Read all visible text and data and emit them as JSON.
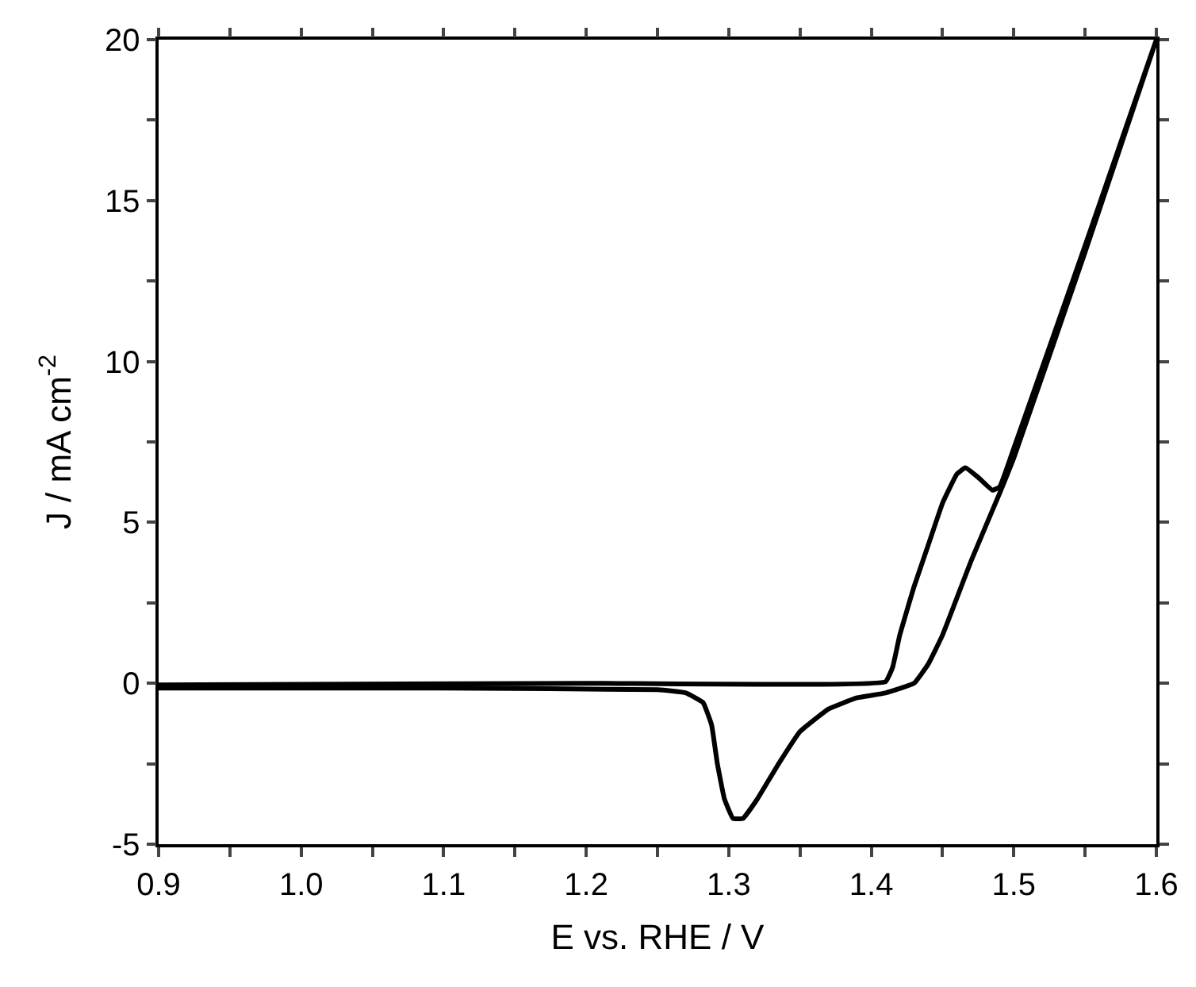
{
  "chart_data": {
    "type": "line",
    "xlabel": "E vs. RHE / V",
    "ylabel": "J / mA cm$^{-2}$",
    "xlim": [
      0.9,
      1.6
    ],
    "ylim": [
      -5,
      20
    ],
    "xticks": [
      0.9,
      {
        "value": 0.95,
        "label": null
      },
      {
        "value": 1.0,
        "label": "1.0"
      },
      {
        "value": 1.05,
        "label": null
      },
      1.1,
      {
        "value": 1.15,
        "label": null
      },
      1.2,
      {
        "value": 1.25,
        "label": null
      },
      1.3,
      {
        "value": 1.35,
        "label": null
      },
      1.4,
      {
        "value": 1.45,
        "label": null
      },
      1.5,
      {
        "value": 1.55,
        "label": null
      },
      1.6
    ],
    "yticks": [
      -5,
      {
        "value": -2.5,
        "label": null
      },
      0,
      {
        "value": 2.5,
        "label": null
      },
      5,
      {
        "value": 7.5,
        "label": null
      },
      10,
      {
        "value": 12.5,
        "label": null
      },
      15,
      {
        "value": 17.5,
        "label": null
      },
      20
    ],
    "marker": "none",
    "line_style": "solid",
    "series": [
      {
        "color": "#000000",
        "x": [
          0.9,
          1.2,
          1.41,
          1.415,
          1.42,
          1.43,
          1.44,
          1.45,
          1.46,
          1.466,
          1.475,
          1.485,
          1.49,
          1.5,
          1.55,
          1.6,
          1.55,
          1.5,
          1.49,
          1.47,
          1.45,
          1.44,
          1.43,
          1.41,
          1.39,
          1.37,
          1.35,
          1.335,
          1.32,
          1.31,
          1.303,
          1.297,
          1.292,
          1.288,
          1.282,
          1.27,
          1.25,
          1.1,
          0.9
        ],
        "values": [
          -0.05,
          0.0,
          0.05,
          0.5,
          1.5,
          3.0,
          4.3,
          5.6,
          6.5,
          6.7,
          6.4,
          6.0,
          6.1,
          7.3,
          13.6,
          20,
          13.4,
          7.0,
          5.9,
          3.8,
          1.5,
          0.6,
          0.0,
          -0.3,
          -0.45,
          -0.8,
          -1.5,
          -2.5,
          -3.6,
          -4.2,
          -4.2,
          -3.6,
          -2.5,
          -1.3,
          -0.6,
          -0.3,
          -0.2,
          -0.15,
          -0.15
        ]
      }
    ]
  }
}
